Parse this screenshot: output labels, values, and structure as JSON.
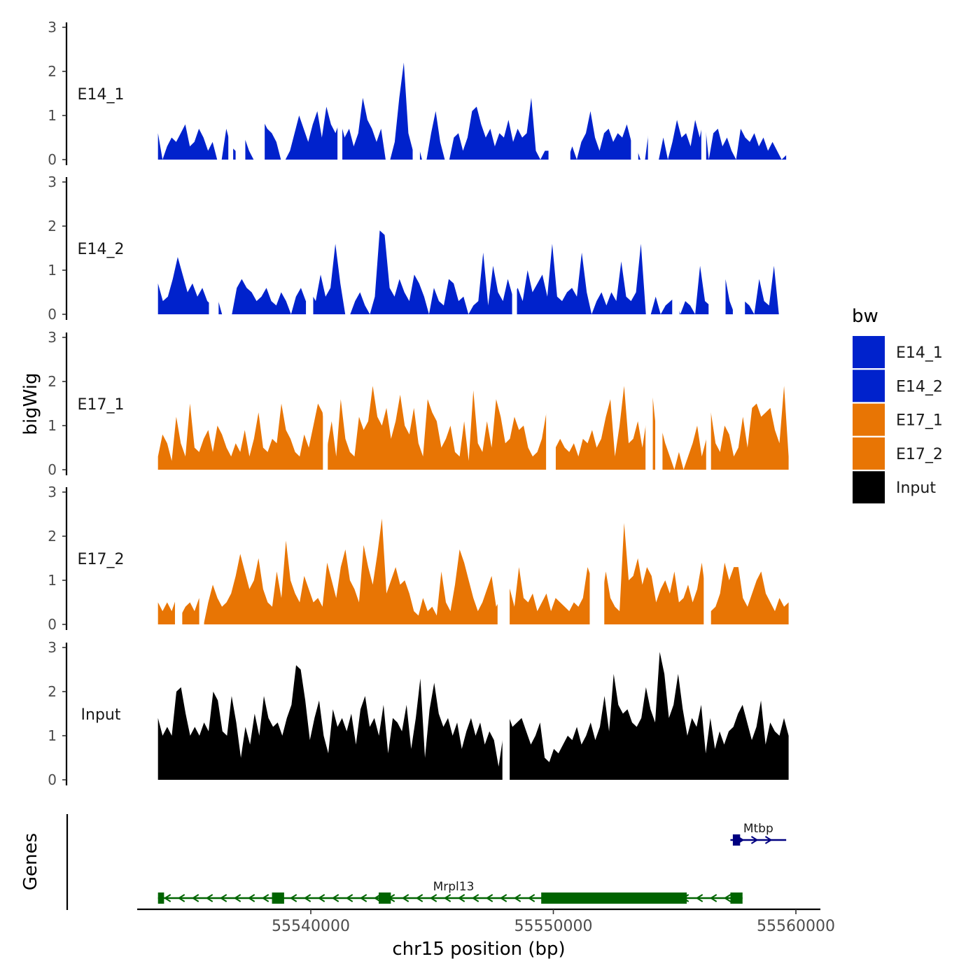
{
  "chart_data": {
    "type": "area",
    "ylabel": "bigWig",
    "xlabel": "chr15 position (bp)",
    "ylim": [
      0,
      3
    ],
    "yticks": [
      "0",
      "1",
      "2",
      "3"
    ],
    "xlim": [
      55533500,
      55560700
    ],
    "xticks": [
      {
        "value": 55540000,
        "label": "55540000"
      },
      {
        "value": 55550000,
        "label": "55550000"
      },
      {
        "value": 55560000,
        "label": "55560000"
      }
    ],
    "legend": {
      "title": "bw",
      "position": "right",
      "entries": [
        {
          "label": "E14_1",
          "color": "#0022cc"
        },
        {
          "label": "E14_2",
          "color": "#0022cc"
        },
        {
          "label": "E17_1",
          "color": "#e87504"
        },
        {
          "label": "E17_2",
          "color": "#e87504"
        },
        {
          "label": "Input",
          "color": "#000000"
        }
      ]
    },
    "tracks": [
      {
        "name": "E14_1",
        "color": "#0022cc",
        "x_start": 55533700,
        "x_end": 55559600,
        "values": [
          0.6,
          0,
          0.3,
          0.5,
          0.4,
          0.6,
          0.8,
          0.3,
          0.4,
          0.7,
          0.5,
          0.2,
          0.4,
          0,
          0,
          0.7,
          0.3,
          0.2,
          0,
          0.5,
          0.2,
          0,
          0,
          0.9,
          0.7,
          0.6,
          0.4,
          0,
          0,
          0.2,
          0.6,
          1.0,
          0.7,
          0.4,
          0.8,
          1.1,
          0.5,
          1.2,
          0.8,
          0.6,
          0.9,
          0.5,
          0.7,
          0.3,
          0.6,
          1.4,
          0.9,
          0.7,
          0.4,
          0.7,
          0,
          0,
          0.4,
          1.4,
          2.2,
          0.6,
          0.2,
          0.4,
          0,
          0,
          0.6,
          1.1,
          0.4,
          0,
          0,
          0.5,
          0.6,
          0.2,
          0.5,
          1.1,
          1.2,
          0.8,
          0.5,
          0.7,
          0.3,
          0.6,
          0.5,
          0.9,
          0.4,
          0.7,
          0.5,
          0.6,
          1.4,
          0.2,
          0,
          0.2,
          0.2,
          0.1,
          0,
          0,
          0,
          0.3,
          0,
          0.4,
          0.6,
          1.1,
          0.5,
          0.2,
          0.6,
          0.7,
          0.4,
          0.6,
          0.5,
          0.8,
          0.4,
          0.3,
          0,
          0,
          0.8,
          0,
          0,
          0.5,
          0,
          0.4,
          0.9,
          0.5,
          0.6,
          0.3,
          0.9,
          0.5,
          1.0,
          0,
          0.6,
          0.7,
          0.3,
          0.5,
          0.2,
          0,
          0.7,
          0.5,
          0.4,
          0.6,
          0.3,
          0.5,
          0.2,
          0.4,
          0.2,
          0,
          0.1
        ],
        "gaps": [
          [
            55536600,
            55536800
          ],
          [
            55536900,
            55537300
          ],
          [
            55537700,
            55538100
          ],
          [
            55541100,
            55541300
          ],
          [
            55544200,
            55544500
          ],
          [
            55549800,
            55550700
          ],
          [
            55553200,
            55553500
          ],
          [
            55553900,
            55554200
          ],
          [
            55556100,
            55556300
          ]
        ]
      },
      {
        "name": "E14_2",
        "color": "#0022cc",
        "x_start": 55533700,
        "x_end": 55559300,
        "values": [
          0.7,
          0.3,
          0.4,
          0.8,
          1.3,
          0.9,
          0.5,
          0.7,
          0.4,
          0.6,
          0.3,
          0.2,
          0.4,
          0,
          0,
          0,
          0.6,
          0.8,
          0.6,
          0.5,
          0.3,
          0.4,
          0.6,
          0.3,
          0.2,
          0.5,
          0.3,
          0,
          0.4,
          0.6,
          0.3,
          0.5,
          0.3,
          0.9,
          0.4,
          0.6,
          1.6,
          0.7,
          0,
          0,
          0.3,
          0.5,
          0.2,
          0,
          0.4,
          1.9,
          1.8,
          0.6,
          0.4,
          0.8,
          0.5,
          0.3,
          0.9,
          0.7,
          0.4,
          0,
          0.6,
          0.3,
          0.2,
          0.8,
          0.7,
          0.3,
          0.4,
          0,
          0.2,
          0.3,
          1.4,
          0.2,
          1.1,
          0.5,
          0.3,
          0.8,
          0.4,
          0.6,
          0.3,
          1.0,
          0.5,
          0.7,
          0.9,
          0.4,
          1.6,
          0.4,
          0.3,
          0.5,
          0.6,
          0.4,
          1.4,
          0.5,
          0,
          0.3,
          0.5,
          0.2,
          0.5,
          0.3,
          1.2,
          0.4,
          0.3,
          0.5,
          1.6,
          0,
          0,
          0.4,
          0,
          0.2,
          0.3,
          0.4,
          0,
          0.3,
          0.2,
          0,
          1.1,
          0.3,
          0.2,
          0,
          0.5,
          0.9,
          0.3,
          0,
          0,
          0.3,
          0.2,
          0,
          0.8,
          0.3,
          0.2,
          1.1,
          0
        ],
        "gaps": [
          [
            55535800,
            55536200
          ],
          [
            55539800,
            55540100
          ],
          [
            55548300,
            55548500
          ],
          [
            55554900,
            55555200
          ],
          [
            55556400,
            55557100
          ],
          [
            55557400,
            55557900
          ]
        ]
      },
      {
        "name": "E17_1",
        "color": "#e87504",
        "x_start": 55533700,
        "x_end": 55559700,
        "values": [
          0.3,
          0.8,
          0.6,
          0.2,
          1.2,
          0.6,
          0.3,
          1.5,
          0.5,
          0.4,
          0.7,
          0.9,
          0.4,
          1.0,
          0.8,
          0.5,
          0.3,
          0.6,
          0.4,
          0.9,
          0.3,
          0.7,
          1.3,
          0.5,
          0.4,
          0.7,
          0.6,
          1.5,
          0.9,
          0.7,
          0.4,
          0.3,
          0.8,
          0.5,
          1.0,
          1.5,
          1.3,
          0.5,
          1.1,
          0.3,
          1.6,
          0.7,
          0.4,
          0.3,
          1.2,
          0.9,
          1.1,
          1.9,
          1.2,
          1.0,
          1.4,
          0.7,
          1.1,
          1.7,
          1.0,
          0.8,
          1.4,
          0.6,
          0.3,
          1.6,
          1.3,
          1.1,
          0.5,
          0.7,
          1.0,
          0.4,
          0.3,
          1.1,
          0.2,
          1.8,
          0.6,
          0.4,
          1.1,
          0.5,
          1.6,
          1.2,
          0.6,
          0.7,
          1.2,
          0.9,
          1.0,
          0.5,
          0.3,
          0.4,
          0.7,
          1.3,
          0.6,
          0.5,
          0.7,
          0.5,
          0.4,
          0.6,
          0.3,
          0.7,
          0.6,
          0.9,
          0.5,
          0.7,
          1.2,
          1.6,
          0.3,
          1.0,
          1.9,
          0.6,
          0.7,
          1.1,
          0.5,
          1.2,
          1.9,
          0.9,
          1.0,
          0.6,
          0.3,
          0,
          0.4,
          0,
          0.3,
          0.6,
          1.0,
          0.3,
          0.7,
          1.3,
          0.6,
          0.4,
          1.0,
          0.8,
          0.3,
          0.5,
          1.2,
          0.5,
          1.4,
          1.5,
          1.2,
          1.3,
          1.4,
          0.9,
          0.6,
          1.9,
          0.3
        ],
        "gaps": [
          [
            55540500,
            55540700
          ],
          [
            55549700,
            55550100
          ],
          [
            55553800,
            55554100
          ],
          [
            55554200,
            55554500
          ],
          [
            55556300,
            55556500
          ]
        ]
      },
      {
        "name": "E17_2",
        "color": "#e87504",
        "x_start": 55533700,
        "x_end": 55559700,
        "values": [
          0.5,
          0.3,
          0.5,
          0.3,
          0.6,
          0.2,
          0.4,
          0.5,
          0.3,
          0.6,
          0,
          0.5,
          0.9,
          0.6,
          0.4,
          0.5,
          0.7,
          1.1,
          1.6,
          1.2,
          0.8,
          1.0,
          1.5,
          0.8,
          0.5,
          0.4,
          1.2,
          0.6,
          1.9,
          1.0,
          0.7,
          0.5,
          1.1,
          0.8,
          0.5,
          0.6,
          0.4,
          1.4,
          1.0,
          0.6,
          1.3,
          1.7,
          1.0,
          0.8,
          0.5,
          1.8,
          1.3,
          0.9,
          1.6,
          2.4,
          0.7,
          1.0,
          1.3,
          0.9,
          1.0,
          0.7,
          0.3,
          0.2,
          0.6,
          0.3,
          0.4,
          0.2,
          1.2,
          0.5,
          0.3,
          0.9,
          1.7,
          1.4,
          1.0,
          0.6,
          0.3,
          0.5,
          0.8,
          1.1,
          0.4,
          0.6,
          1.0,
          0.8,
          0.4,
          1.3,
          0.6,
          0.5,
          0.7,
          0.3,
          0.5,
          0.7,
          0.3,
          0.6,
          0.5,
          0.4,
          0.3,
          0.5,
          0.4,
          0.6,
          1.3,
          1.0,
          0.7,
          0.5,
          1.2,
          0.6,
          0.4,
          0.3,
          2.3,
          1.0,
          1.1,
          1.5,
          0.9,
          1.3,
          1.1,
          0.5,
          0.8,
          1.0,
          0.7,
          1.2,
          0.5,
          0.6,
          0.9,
          0.5,
          0.8,
          1.4,
          0.6,
          0.3,
          0.4,
          0.7,
          1.4,
          1.0,
          1.3,
          1.3,
          0.6,
          0.4,
          0.7,
          1.0,
          1.2,
          0.7,
          0.5,
          0.3,
          0.6,
          0.4,
          0.5
        ],
        "gaps": [
          [
            55534400,
            55534700
          ],
          [
            55535400,
            55535600
          ],
          [
            55547700,
            55548200
          ],
          [
            55551500,
            55552100
          ],
          [
            55556200,
            55556500
          ]
        ]
      },
      {
        "name": "Input",
        "color": "#000000",
        "x_start": 55533700,
        "x_end": 55559700,
        "values": [
          1.4,
          1.0,
          1.2,
          1.0,
          2.0,
          2.1,
          1.5,
          1.0,
          1.2,
          1.0,
          1.3,
          1.1,
          2.0,
          1.8,
          1.1,
          1.0,
          1.9,
          1.3,
          0.5,
          1.2,
          0.8,
          1.5,
          1.0,
          1.9,
          1.4,
          1.2,
          1.3,
          1.0,
          1.4,
          1.7,
          2.6,
          2.5,
          1.8,
          0.9,
          1.4,
          1.8,
          1.0,
          0.6,
          1.6,
          1.2,
          1.4,
          1.1,
          1.5,
          0.8,
          1.6,
          1.9,
          1.2,
          1.4,
          1.0,
          1.7,
          0.6,
          1.4,
          1.3,
          1.1,
          1.7,
          0.7,
          1.4,
          2.3,
          0.5,
          1.6,
          2.2,
          1.5,
          1.2,
          1.4,
          1.0,
          1.3,
          0.7,
          1.1,
          1.4,
          1.0,
          1.3,
          0.8,
          1.1,
          0.9,
          0.3,
          1.0,
          1.5,
          1.2,
          1.3,
          1.4,
          1.1,
          0.8,
          1.0,
          1.3,
          0.5,
          0.4,
          0.7,
          0.6,
          0.8,
          1.0,
          0.9,
          1.2,
          0.8,
          1.0,
          1.3,
          0.9,
          1.2,
          1.9,
          1.1,
          2.4,
          1.7,
          1.5,
          1.6,
          1.3,
          1.2,
          1.4,
          2.1,
          1.6,
          1.3,
          2.9,
          2.4,
          1.4,
          1.7,
          2.4,
          1.6,
          1.0,
          1.4,
          1.2,
          1.7,
          0.6,
          1.4,
          0.7,
          1.1,
          0.8,
          1.1,
          1.2,
          1.5,
          1.7,
          1.3,
          0.9,
          1.2,
          1.8,
          0.8,
          1.3,
          1.1,
          1.0,
          1.4,
          1.0
        ],
        "gaps": [
          [
            55547900,
            55548200
          ]
        ]
      }
    ],
    "genes_panel": {
      "label": "Genes",
      "genes": [
        {
          "name": "Mrpl13",
          "strand": "-",
          "color": "#006400",
          "start": 55533700,
          "end": 55557800,
          "row": "lower",
          "exons": [
            [
              55533700,
              55533950
            ],
            [
              55538400,
              55538900
            ],
            [
              55542800,
              55543300
            ],
            [
              55549500,
              55555500
            ],
            [
              55557300,
              55557800
            ]
          ]
        },
        {
          "name": "Mtbp",
          "strand": "+",
          "color": "#000080",
          "start": 55557300,
          "end": 55559600,
          "row": "upper",
          "exons": [
            [
              55557400,
              55557700
            ]
          ]
        }
      ]
    }
  }
}
